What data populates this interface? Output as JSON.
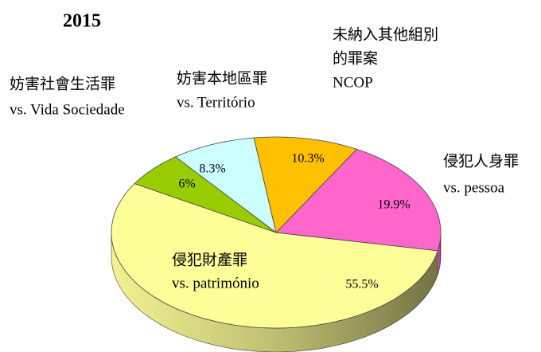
{
  "chart_data": {
    "type": "pie",
    "title": "2015",
    "categories": [
      [
        "侵犯財產罪",
        "vs. património"
      ],
      [
        "妨害社會生活罪",
        "vs. Vida Sociedade"
      ],
      [
        "妨害本地區罪",
        "vs. Território"
      ],
      [
        "未納入其他組別",
        "的罪案",
        "NCOP"
      ],
      [
        "侵犯人身罪",
        "vs. pessoa"
      ]
    ],
    "values": [
      55.5,
      6,
      8.3,
      10.3,
      19.9
    ],
    "value_labels": [
      "55.5%",
      "6%",
      "8.3%",
      "10.3%",
      "19.9%"
    ],
    "colors": [
      "#ffff99",
      "#99cc00",
      "#ccffff",
      "#ffc000",
      "#ff66cc"
    ]
  }
}
